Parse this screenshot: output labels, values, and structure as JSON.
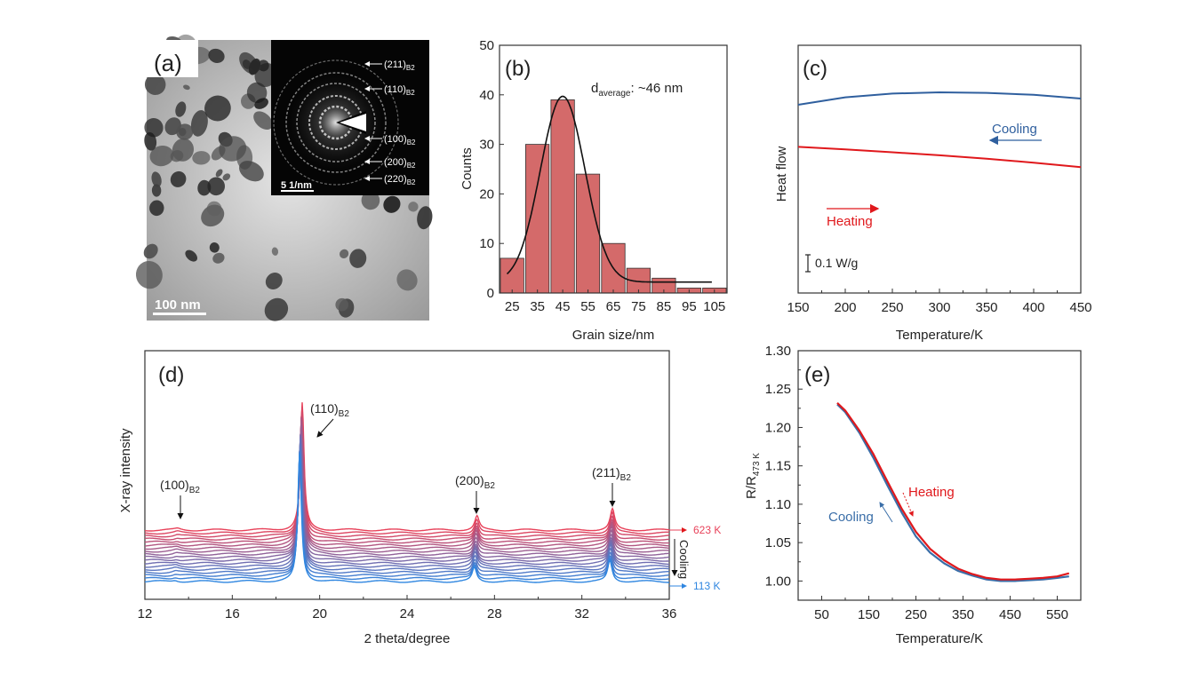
{
  "panel_a": {
    "label": "(a)",
    "scale_bar": "100 nm",
    "inset_scale_bar": "5 1/nm",
    "rings": [
      {
        "hkl": "(211)",
        "sub": "B2"
      },
      {
        "hkl": "(110)",
        "sub": "B2"
      },
      {
        "hkl": "(100)",
        "sub": "B2"
      },
      {
        "hkl": "(200)",
        "sub": "B2"
      },
      {
        "hkl": "(220)",
        "sub": "B2"
      }
    ]
  },
  "chart_data": [
    {
      "id": "b",
      "type": "bar",
      "label": "(b)",
      "xlabel": "Grain size/nm",
      "ylabel": "Counts",
      "categories": [
        "25",
        "35",
        "45",
        "55",
        "65",
        "75",
        "85",
        "95",
        "105"
      ],
      "values": [
        7,
        30,
        39,
        24,
        10,
        5,
        3,
        1,
        1
      ],
      "ylim": [
        0,
        50
      ],
      "yticks": [
        0,
        10,
        20,
        30,
        40,
        50
      ],
      "bar_color": "#d46a6a",
      "fit": {
        "type": "gaussian",
        "center": 45,
        "sigma": 8.8,
        "amplitude": 37.5,
        "offset": 2.2,
        "xrange": [
          23,
          104
        ],
        "color": "#111111"
      },
      "annotation": {
        "main": "d",
        "sub": "average",
        "rest": ": ~46 nm"
      }
    },
    {
      "id": "c",
      "type": "line",
      "label": "(c)",
      "xlabel": "Temperature/K",
      "ylabel": "Heat flow",
      "xlim": [
        150,
        450
      ],
      "xticks": [
        150,
        200,
        250,
        300,
        350,
        400,
        450
      ],
      "ylim": [
        0,
        1
      ],
      "series": [
        {
          "name": "Cooling",
          "color": "#2f5f9e",
          "x": [
            150,
            200,
            250,
            300,
            350,
            400,
            450
          ],
          "y": [
            0.76,
            0.79,
            0.805,
            0.81,
            0.808,
            0.8,
            0.785
          ]
        },
        {
          "name": "Heating",
          "color": "#e0181c",
          "x": [
            150,
            200,
            250,
            300,
            350,
            400,
            450
          ],
          "y": [
            0.59,
            0.58,
            0.568,
            0.556,
            0.542,
            0.526,
            0.508
          ]
        }
      ],
      "scale_label": "0.1 W/g"
    },
    {
      "id": "d",
      "type": "line",
      "label": "(d)",
      "xlabel": "2 theta/degree",
      "ylabel": "X-ray intensity",
      "xlim": [
        12,
        36
      ],
      "xticks": [
        12,
        16,
        20,
        24,
        28,
        32,
        36
      ],
      "peaks": [
        {
          "hkl": "(100)",
          "sub": "B2",
          "pos": 13.5
        },
        {
          "hkl": "(110)",
          "sub": "B2",
          "pos": 19.2
        },
        {
          "hkl": "(200)",
          "sub": "B2",
          "pos": 27.2
        },
        {
          "hkl": "(211)",
          "sub": "B2",
          "pos": 33.4
        }
      ],
      "curves": 18,
      "top_label": "623 K",
      "bottom_label": "113 K",
      "direction_label": "Cooling",
      "color_top": "#e8425a",
      "color_bottom": "#2f86e0"
    },
    {
      "id": "e",
      "type": "line",
      "label": "(e)",
      "xlabel": "Temperature/K",
      "ylabel": {
        "main": "R/R",
        "sub": "473 K"
      },
      "xlim": [
        0,
        600
      ],
      "xticks": [
        50,
        150,
        250,
        350,
        450,
        550
      ],
      "ylim": [
        0.975,
        1.3
      ],
      "yticks": [
        "1.00",
        "1.05",
        "1.10",
        "1.15",
        "1.20",
        "1.25",
        "1.30"
      ],
      "series": [
        {
          "name": "Heating",
          "color": "#e0181c",
          "x": [
            83,
            100,
            130,
            160,
            190,
            220,
            250,
            280,
            310,
            340,
            370,
            400,
            430,
            460,
            490,
            520,
            550,
            575
          ],
          "y": [
            1.232,
            1.222,
            1.196,
            1.165,
            1.129,
            1.094,
            1.064,
            1.042,
            1.027,
            1.016,
            1.009,
            1.004,
            1.002,
            1.002,
            1.003,
            1.004,
            1.006,
            1.01
          ]
        },
        {
          "name": "Cooling",
          "color": "#3a6ea8",
          "x": [
            83,
            100,
            130,
            160,
            190,
            220,
            250,
            280,
            310,
            340,
            370,
            400,
            430,
            460,
            490,
            520,
            550,
            575
          ],
          "y": [
            1.23,
            1.22,
            1.193,
            1.16,
            1.124,
            1.089,
            1.058,
            1.037,
            1.023,
            1.013,
            1.007,
            1.002,
            1.0,
            1.0,
            1.001,
            1.002,
            1.004,
            1.006
          ]
        }
      ]
    }
  ]
}
